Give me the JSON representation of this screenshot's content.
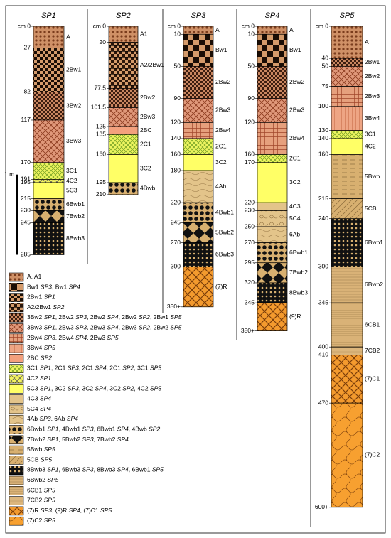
{
  "profiles": [
    {
      "name": "SP1",
      "ticks": [
        {
          "value": 0,
          "label": "cm 0"
        },
        27,
        82,
        117,
        170,
        191,
        195,
        215,
        230,
        245,
        285
      ],
      "layers": [
        {
          "label": "A",
          "top": 0,
          "bottom": 27,
          "fill": "p0"
        },
        {
          "label": "2Bw1",
          "top": 27,
          "bottom": 82,
          "fill": "p2"
        },
        {
          "label": "3Bw2",
          "top": 82,
          "bottom": 117,
          "fill": "p4"
        },
        {
          "label": "3Bw3",
          "top": 117,
          "bottom": 170,
          "fill": "p5"
        },
        {
          "label": "3C1",
          "top": 170,
          "bottom": 191,
          "fill": "p9"
        },
        {
          "label": "4C2",
          "top": 191,
          "bottom": 195,
          "fill": "p10"
        },
        {
          "label": "5C3",
          "top": 195,
          "bottom": 215,
          "fill": "p11"
        },
        {
          "label": "6Bwb1",
          "top": 215,
          "bottom": 230,
          "fill": "p15"
        },
        {
          "label": "7Bwb2",
          "top": 230,
          "bottom": 245,
          "fill": "p16"
        },
        {
          "label": "8Bwb3",
          "top": 245,
          "bottom": 285,
          "fill": "p19"
        }
      ]
    },
    {
      "name": "SP2",
      "ticks": [
        {
          "value": 0,
          "label": "cm 0"
        },
        20,
        77.5,
        101.5,
        125,
        135,
        160,
        195,
        210
      ],
      "layers": [
        {
          "label": "A1",
          "top": 0,
          "bottom": 20,
          "fill": "p0"
        },
        {
          "label": "A2/2Bw1",
          "top": 20,
          "bottom": 77.5,
          "fill": "p3"
        },
        {
          "label": "2Bw2",
          "top": 77.5,
          "bottom": 101.5,
          "fill": "p4"
        },
        {
          "label": "2Bw3",
          "top": 101.5,
          "bottom": 125,
          "fill": "p5"
        },
        {
          "label": "2BC",
          "top": 125,
          "bottom": 135,
          "fill": "p8"
        },
        {
          "label": "2C1",
          "top": 135,
          "bottom": 160,
          "fill": "p9"
        },
        {
          "label": "3C2",
          "top": 160,
          "bottom": 195,
          "fill": "p11"
        },
        {
          "label": "4Bwb",
          "top": 195,
          "bottom": 210,
          "fill": "p15"
        }
      ]
    },
    {
      "name": "SP3",
      "ticks": [
        {
          "value": 0,
          "label": "cm 0"
        },
        10,
        50,
        90,
        120,
        140,
        160,
        180,
        220,
        245,
        270,
        300,
        {
          "value": 350,
          "label": "350+"
        }
      ],
      "layers": [
        {
          "label": "A",
          "top": 0,
          "bottom": 10,
          "fill": "p0"
        },
        {
          "label": "Bw1",
          "top": 10,
          "bottom": 50,
          "fill": "p1"
        },
        {
          "label": "2Bw2",
          "top": 50,
          "bottom": 90,
          "fill": "p4"
        },
        {
          "label": "2Bw3",
          "top": 90,
          "bottom": 120,
          "fill": "p5"
        },
        {
          "label": "2Bw4",
          "top": 120,
          "bottom": 140,
          "fill": "p6"
        },
        {
          "label": "2C1",
          "top": 140,
          "bottom": 160,
          "fill": "p9"
        },
        {
          "label": "3C2",
          "top": 160,
          "bottom": 180,
          "fill": "p11"
        },
        {
          "label": "4Ab",
          "top": 180,
          "bottom": 220,
          "fill": "p14"
        },
        {
          "label": "4Bwb1",
          "top": 220,
          "bottom": 245,
          "fill": "p15"
        },
        {
          "label": "5Bwb2",
          "top": 245,
          "bottom": 270,
          "fill": "p16"
        },
        {
          "label": "6Bwb3",
          "top": 270,
          "bottom": 300,
          "fill": "p19"
        },
        {
          "label": "(7)R",
          "top": 300,
          "bottom": 350,
          "fill": "p23"
        }
      ]
    },
    {
      "name": "SP4",
      "ticks": [
        {
          "value": 0,
          "label": "cm 0"
        },
        10,
        50,
        90,
        120,
        160,
        170,
        220,
        230,
        250,
        270,
        295,
        320,
        345,
        {
          "value": 380,
          "label": "380+"
        }
      ],
      "layers": [
        {
          "label": "A",
          "top": 0,
          "bottom": 10,
          "fill": "p0"
        },
        {
          "label": "Bw1",
          "top": 10,
          "bottom": 50,
          "fill": "p1"
        },
        {
          "label": "2Bw2",
          "top": 50,
          "bottom": 90,
          "fill": "p4"
        },
        {
          "label": "2Bw3",
          "top": 90,
          "bottom": 120,
          "fill": "p5"
        },
        {
          "label": "2Bw4",
          "top": 120,
          "bottom": 160,
          "fill": "p6"
        },
        {
          "label": "2C1",
          "top": 160,
          "bottom": 170,
          "fill": "p9"
        },
        {
          "label": "3C2",
          "top": 170,
          "bottom": 220,
          "fill": "p11"
        },
        {
          "label": "4C3",
          "top": 220,
          "bottom": 230,
          "fill": "p12"
        },
        {
          "label": "5C4",
          "top": 230,
          "bottom": 250,
          "fill": "p13"
        },
        {
          "label": "6Ab",
          "top": 250,
          "bottom": 270,
          "fill": "p14"
        },
        {
          "label": "6Bwb1",
          "top": 270,
          "bottom": 295,
          "fill": "p15"
        },
        {
          "label": "7Bwb2",
          "top": 295,
          "bottom": 320,
          "fill": "p16"
        },
        {
          "label": "8Bwb3",
          "top": 320,
          "bottom": 345,
          "fill": "p19"
        },
        {
          "label": "(9)R",
          "top": 345,
          "bottom": 380,
          "fill": "p23"
        }
      ]
    },
    {
      "name": "SP5",
      "ticks": [
        {
          "value": 0,
          "label": "cm 0"
        },
        40,
        50,
        75,
        100,
        130,
        140,
        160,
        215,
        240,
        300,
        345,
        400,
        410,
        470,
        {
          "value": 600,
          "label": "600+"
        }
      ],
      "layers": [
        {
          "label": "A",
          "top": 0,
          "bottom": 40,
          "fill": "p0"
        },
        {
          "label": "2Bw1",
          "top": 40,
          "bottom": 50,
          "fill": "p4"
        },
        {
          "label": "2Bw2",
          "top": 50,
          "bottom": 75,
          "fill": "p5"
        },
        {
          "label": "2Bw3",
          "top": 75,
          "bottom": 100,
          "fill": "p6"
        },
        {
          "label": "3Bw4",
          "top": 100,
          "bottom": 130,
          "fill": "p7"
        },
        {
          "label": "3C1",
          "top": 130,
          "bottom": 140,
          "fill": "p9"
        },
        {
          "label": "4C2",
          "top": 140,
          "bottom": 160,
          "fill": "p11"
        },
        {
          "label": "5Bwb",
          "top": 160,
          "bottom": 215,
          "fill": "p17"
        },
        {
          "label": "5CB",
          "top": 215,
          "bottom": 240,
          "fill": "p18"
        },
        {
          "label": "6Bwb1",
          "top": 240,
          "bottom": 300,
          "fill": "p19"
        },
        {
          "label": "6Bwb2",
          "top": 300,
          "bottom": 345,
          "fill": "p20"
        },
        {
          "label": "6CB1",
          "top": 345,
          "bottom": 400,
          "fill": "p21"
        },
        {
          "label": "7CB2",
          "top": 400,
          "bottom": 410,
          "fill": "p22"
        },
        {
          "label": "(7)C1",
          "top": 410,
          "bottom": 470,
          "fill": "p23"
        },
        {
          "label": "(7)C2",
          "top": 470,
          "bottom": 600,
          "fill": "p24"
        }
      ]
    }
  ],
  "scale_bar": {
    "label": "1 m",
    "value": 100
  },
  "legend": [
    {
      "fill": "p0",
      "parts": [
        "A, A1"
      ]
    },
    {
      "fill": "p1",
      "parts": [
        "Bw1 ",
        "SP3",
        ", Bw1 ",
        "SP4"
      ]
    },
    {
      "fill": "p2",
      "parts": [
        "2Bw1 ",
        "SP1"
      ]
    },
    {
      "fill": "p3",
      "parts": [
        "A2/2Bw1 ",
        "SP2"
      ]
    },
    {
      "fill": "p4",
      "parts": [
        "3Bw2 ",
        "SP1",
        ", 2Bw2 ",
        "SP3",
        ", 2Bw2 ",
        "SP4",
        ", 2Bw2 ",
        "SP2",
        ", 2Bw1 ",
        "SP5"
      ]
    },
    {
      "fill": "p5",
      "parts": [
        "3Bw3 ",
        "SP1",
        ", 2Bw3 ",
        "SP3",
        ", 2Bw3 ",
        "SP4",
        ", 2Bw3 ",
        "SP2",
        ", 2Bw2 ",
        "SP5"
      ]
    },
    {
      "fill": "p6",
      "parts": [
        "2Bw4 ",
        "SP3",
        ", 2Bw4 ",
        "SP4",
        ", 2Bw3 ",
        "SP5"
      ]
    },
    {
      "fill": "p7",
      "parts": [
        "3Bw4 ",
        "SP5"
      ]
    },
    {
      "fill": "p8",
      "parts": [
        "2BC ",
        "SP2"
      ]
    },
    {
      "fill": "p9",
      "parts": [
        "3C1 ",
        "SP1",
        ", 2C1 ",
        "SP3",
        ", 2C1 ",
        "SP4",
        ", 2C1 ",
        "SP2",
        ", 3C1 ",
        "SP5"
      ]
    },
    {
      "fill": "p10",
      "parts": [
        "4C2 ",
        "SP1"
      ]
    },
    {
      "fill": "p11",
      "parts": [
        "5C3 ",
        "SP1",
        ", 3C2 ",
        "SP3",
        ", 3C2 ",
        "SP4",
        ", 3C2 ",
        "SP2",
        ", 4C2 ",
        "SP5"
      ]
    },
    {
      "fill": "p12",
      "parts": [
        "4C3 ",
        "SP4"
      ]
    },
    {
      "fill": "p13",
      "parts": [
        "5C4 ",
        "SP4"
      ]
    },
    {
      "fill": "p14",
      "parts": [
        "4Ab ",
        "SP3",
        ", 6Ab ",
        "SP4"
      ]
    },
    {
      "fill": "p15",
      "parts": [
        "6Bwb1 ",
        "SP1",
        ", 4Bwb1 ",
        "SP3",
        ", 6Bwb1 ",
        "SP4",
        ", 4Bwb ",
        "SP2"
      ]
    },
    {
      "fill": "p16",
      "parts": [
        "7Bwb2 ",
        "SP1",
        ", 5Bwb2 ",
        "SP3",
        ", 7Bwb2 ",
        "SP4"
      ]
    },
    {
      "fill": "p17",
      "parts": [
        "5Bwb ",
        "SP5"
      ]
    },
    {
      "fill": "p18",
      "parts": [
        "5CB ",
        "SP5"
      ]
    },
    {
      "fill": "p19",
      "parts": [
        "8Bwb3 ",
        "SP1",
        ", 6Bwb3 ",
        "SP3",
        ", 8Bwb3 ",
        "SP4",
        ", 6Bwb1 ",
        "SP5"
      ]
    },
    {
      "fill": "p20",
      "parts": [
        "6Bwb2 ",
        "SP5"
      ]
    },
    {
      "fill": "p21",
      "parts": [
        "6CB1 ",
        "SP5"
      ]
    },
    {
      "fill": "p22",
      "parts": [
        "7CB2 ",
        "SP5"
      ]
    },
    {
      "fill": "p23",
      "parts": [
        "(7)R ",
        "SP3",
        ", (9)R ",
        "SP4",
        ", (7)C1 ",
        "SP5"
      ]
    },
    {
      "fill": "p24",
      "parts": [
        "(7)C2 ",
        "SP5"
      ]
    }
  ]
}
